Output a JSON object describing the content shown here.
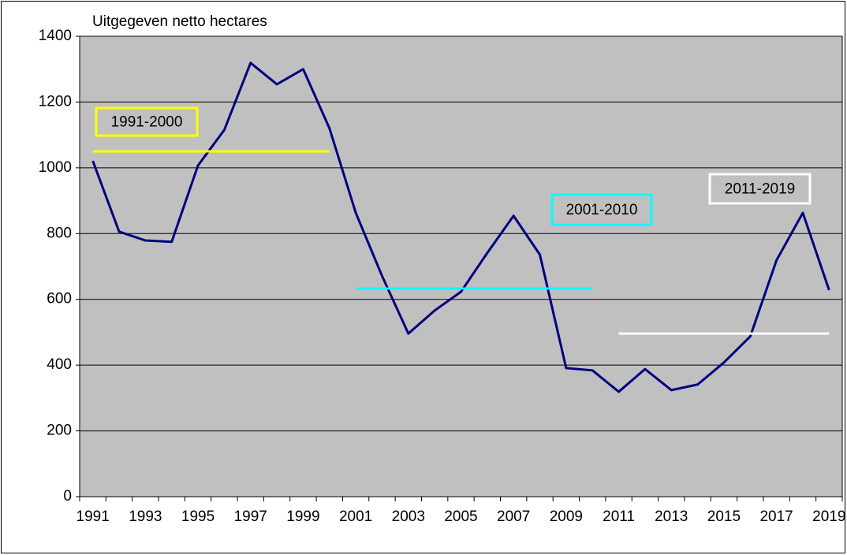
{
  "chart_data": {
    "type": "line",
    "y_label": "Uitgegeven netto hectares",
    "categories": [
      "1991",
      null,
      "1993",
      null,
      "1995",
      null,
      "1997",
      null,
      "1999",
      null,
      "2001",
      null,
      "2003",
      null,
      "2005",
      null,
      "2007",
      null,
      "2009",
      null,
      "2011",
      null,
      "2013",
      null,
      "2015",
      null,
      "2017",
      null,
      "2019"
    ],
    "series": [
      {
        "name": null,
        "color": "#000080",
        "values": [
          1021,
          806,
          779,
          775,
          1007,
          1115,
          1319,
          1254,
          1300,
          1120,
          863,
          671,
          496,
          566,
          623,
          741,
          854,
          736,
          391,
          384,
          319,
          388,
          324,
          341,
          408,
          487,
          719,
          863,
          628
        ]
      },
      {
        "name": "1991-2000",
        "color": "#ffff00",
        "values": [
          1050,
          1050,
          1050,
          1050,
          1050,
          1050,
          1050,
          1050,
          1050,
          1050,
          null,
          null,
          null,
          null,
          null,
          null,
          null,
          null,
          null,
          null,
          null,
          null,
          null,
          null,
          null,
          null,
          null,
          null,
          null
        ]
      },
      {
        "name": "2001-2010",
        "color": "#00ffff",
        "values": [
          null,
          null,
          null,
          null,
          null,
          null,
          null,
          null,
          null,
          null,
          633,
          633,
          633,
          633,
          633,
          633,
          633,
          633,
          633,
          633,
          null,
          null,
          null,
          null,
          null,
          null,
          null,
          null,
          null
        ]
      },
      {
        "name": "2011-2019",
        "color": "#ffffff",
        "values": [
          null,
          null,
          null,
          null,
          null,
          null,
          null,
          null,
          null,
          null,
          null,
          null,
          null,
          null,
          null,
          null,
          null,
          null,
          null,
          null,
          496,
          496,
          496,
          496,
          496,
          496,
          496,
          496,
          496
        ]
      }
    ],
    "ylim": [
      0,
      1400
    ],
    "yticks": [
      0,
      200,
      400,
      600,
      800,
      1000,
      1200,
      1400
    ],
    "grid": true,
    "plot_background": "#c0c0c0"
  }
}
